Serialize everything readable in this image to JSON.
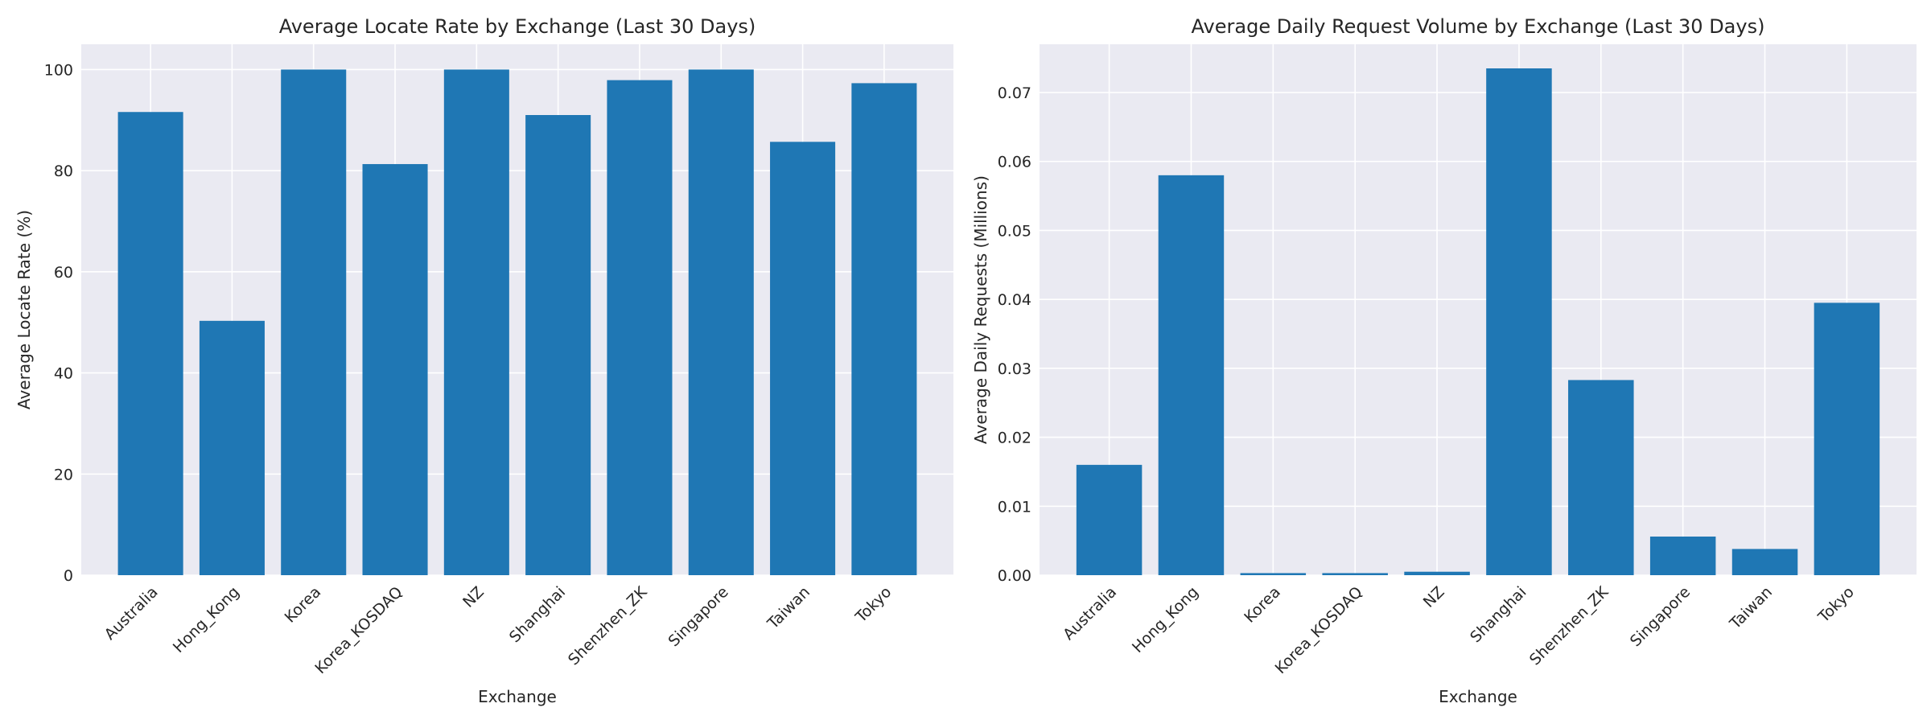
{
  "chart_data": [
    {
      "type": "bar",
      "title": "Average Locate Rate by Exchange (Last 30 Days)",
      "xlabel": "Exchange",
      "ylabel": "Average Locate Rate (%)",
      "categories": [
        "Australia",
        "Hong_Kong",
        "Korea",
        "Korea_KOSDAQ",
        "NZ",
        "Shanghai",
        "Shenzhen_ZK",
        "Singapore",
        "Taiwan",
        "Tokyo"
      ],
      "values": [
        91.6,
        50.3,
        100.0,
        81.3,
        100.0,
        91.0,
        97.9,
        100.0,
        85.7,
        97.3
      ],
      "ylim": [
        0,
        105
      ],
      "yticks": [
        "0",
        "20",
        "40",
        "60",
        "80",
        "100"
      ],
      "grid": true,
      "bar_color": "#1f77b4",
      "background_color": "#eaeaf2"
    },
    {
      "type": "bar",
      "title": "Average Daily Request Volume by Exchange (Last 30 Days)",
      "xlabel": "Exchange",
      "ylabel": "Average Daily Requests (Millions)",
      "categories": [
        "Australia",
        "Hong_Kong",
        "Korea",
        "Korea_KOSDAQ",
        "NZ",
        "Shanghai",
        "Shenzhen_ZK",
        "Singapore",
        "Taiwan",
        "Tokyo"
      ],
      "values": [
        0.016,
        0.058,
        0.0003,
        0.0003,
        0.0005,
        0.0735,
        0.0283,
        0.0056,
        0.0038,
        0.0395
      ],
      "ylim": [
        0,
        0.077
      ],
      "yticks": [
        "0.00",
        "0.01",
        "0.02",
        "0.03",
        "0.04",
        "0.05",
        "0.06",
        "0.07"
      ],
      "grid": true,
      "bar_color": "#1f77b4",
      "background_color": "#eaeaf2"
    }
  ]
}
